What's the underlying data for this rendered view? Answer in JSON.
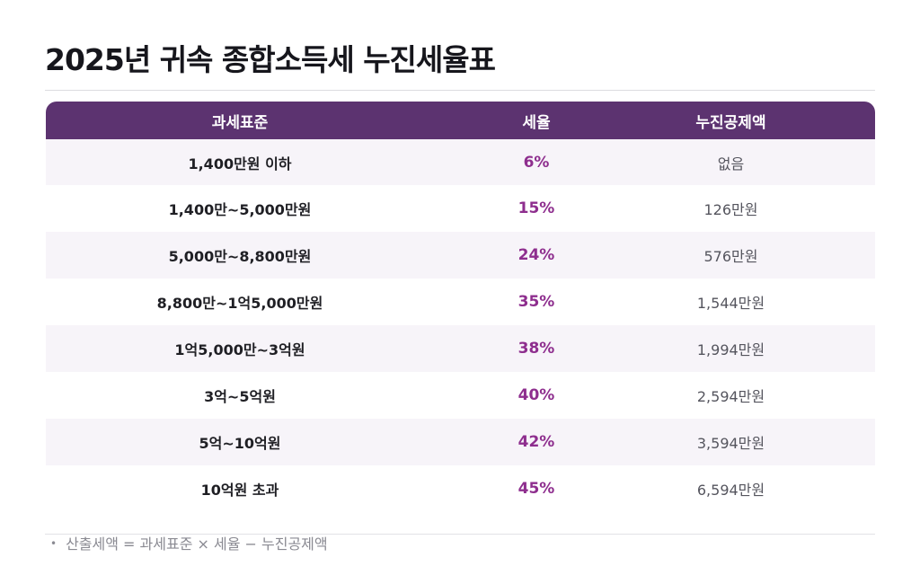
{
  "title": "2025년 귀속 종합소득세 누진세율표",
  "table": {
    "headers": {
      "base": "과세표준",
      "rate": "세율",
      "deduction": "누진공제액"
    },
    "rows": [
      {
        "base": "1,400만원 이하",
        "rate": "6%",
        "deduction": "없음"
      },
      {
        "base": "1,400만~5,000만원",
        "rate": "15%",
        "deduction": "126만원"
      },
      {
        "base": "5,000만~8,800만원",
        "rate": "24%",
        "deduction": "576만원"
      },
      {
        "base": "8,800만~1억5,000만원",
        "rate": "35%",
        "deduction": "1,544만원"
      },
      {
        "base": "1억5,000만~3억원",
        "rate": "38%",
        "deduction": "1,994만원"
      },
      {
        "base": "3억~5억원",
        "rate": "40%",
        "deduction": "2,594만원"
      },
      {
        "base": "5억~10억원",
        "rate": "42%",
        "deduction": "3,594만원"
      },
      {
        "base": "10억원 초과",
        "rate": "45%",
        "deduction": "6,594만원"
      }
    ]
  },
  "footnote": {
    "bullet": "•",
    "text": "산출세액 = 과세표준 × 세율 − 누진공제액"
  },
  "colors": {
    "header_bg": "#5c3370",
    "rate_text": "#8e2e8e",
    "shaded_row": "#f7f4f9"
  }
}
